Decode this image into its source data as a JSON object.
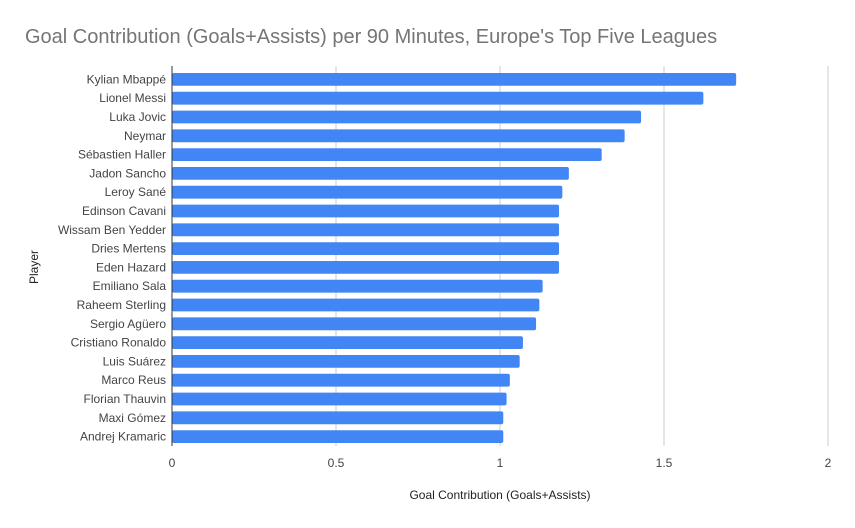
{
  "chart_data": {
    "type": "bar",
    "orientation": "horizontal",
    "title": "Goal Contribution (Goals+Assists) per 90 Minutes, Europe's Top Five Leagues",
    "xlabel": "Goal Contribution (Goals+Assists)",
    "ylabel": "Player",
    "xlim": [
      0,
      2
    ],
    "xticks": [
      0,
      0.5,
      1,
      1.5,
      2
    ],
    "xtick_labels": [
      "0",
      "0.5",
      "1",
      "1.5",
      "2"
    ],
    "grid": true,
    "bar_color": "#4285f4",
    "categories": [
      "Kylian Mbappé",
      "Lionel Messi",
      "Luka Jovic",
      "Neymar",
      "Sébastien Haller",
      "Jadon Sancho",
      "Leroy Sané",
      "Edinson Cavani",
      "Wissam Ben Yedder",
      "Dries Mertens",
      "Eden Hazard",
      "Emiliano Sala",
      "Raheem Sterling",
      "Sergio Agüero",
      "Cristiano Ronaldo",
      "Luis Suárez",
      "Marco Reus",
      "Florian Thauvin",
      "Maxi Gómez",
      "Andrej Kramaric"
    ],
    "values": [
      1.72,
      1.62,
      1.43,
      1.38,
      1.31,
      1.21,
      1.19,
      1.18,
      1.18,
      1.18,
      1.18,
      1.13,
      1.12,
      1.11,
      1.07,
      1.06,
      1.03,
      1.02,
      1.01,
      1.01
    ]
  }
}
